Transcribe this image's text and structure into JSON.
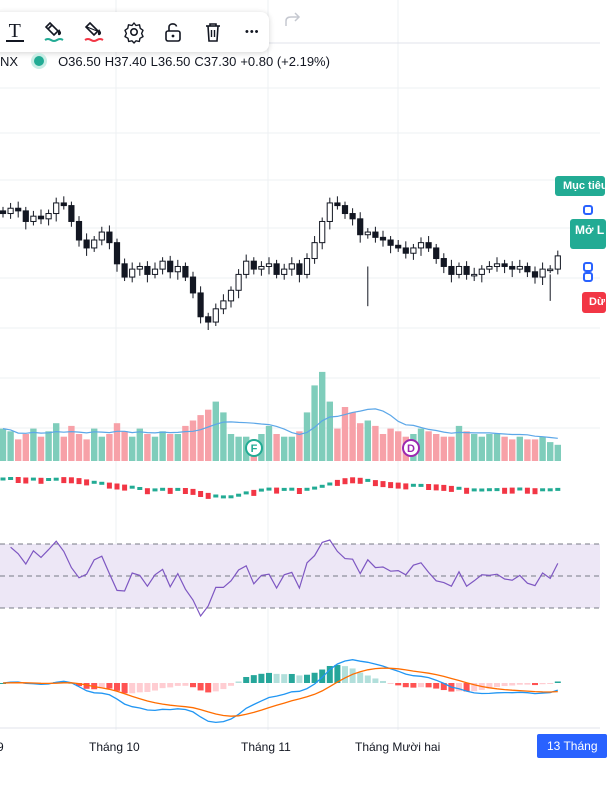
{
  "toolbar": {
    "items": [
      {
        "name": "text-tool",
        "icon": "text-icon"
      },
      {
        "name": "line-color",
        "icon": "brush-icon"
      },
      {
        "name": "fill-color",
        "icon": "paint-bucket-icon"
      },
      {
        "name": "settings",
        "icon": "gear-icon"
      },
      {
        "name": "lock",
        "icon": "lock-icon"
      },
      {
        "name": "delete",
        "icon": "trash-icon"
      },
      {
        "name": "more",
        "icon": "more-icon"
      }
    ],
    "redo_icon": "redo-icon",
    "text_glyph": "T",
    "more_glyph": "•••"
  },
  "legend": {
    "symbol": "NX",
    "open": "O36.50",
    "high": "H37.40",
    "low": "L36.50",
    "close": "C37.30",
    "change": "+0.80 (+2.19%)"
  },
  "right_tags": {
    "target": "Mục tiêu",
    "open": "Mở L",
    "stop": "Dừ"
  },
  "markers": {
    "f": "F",
    "d": "D"
  },
  "x_axis": {
    "labels": [
      "9",
      "Tháng 10",
      "Tháng 11",
      "Tháng Mười hai"
    ],
    "current": "13 Tháng"
  },
  "colors": {
    "up": "#22ab94",
    "down": "#f23645",
    "body": "#131722",
    "volume_up": "#7fcdbb",
    "volume_down": "#f7a1a8",
    "ma_line": "#5ca7e8",
    "rsi_line": "#7e57c2",
    "rsi_band": "#ede7f6",
    "macd_line": "#2196f3",
    "signal_line": "#ff6d00",
    "grid": "#eef0f3"
  },
  "chart_data": {
    "type": "candlestick",
    "symbol": "NX",
    "last": {
      "open": 36.5,
      "high": 37.4,
      "low": 36.5,
      "close": 37.3,
      "change": 0.8,
      "change_pct": 2.19
    },
    "x_tick_labels": [
      "9",
      "Tháng 10",
      "Tháng 11",
      "Tháng Mười hai",
      "13 Tháng"
    ],
    "indicators": [
      "Volume + MA",
      "Moving-average ribbon",
      "RSI",
      "MACD"
    ],
    "events": [
      "F",
      "D"
    ],
    "close_series": [
      38.9,
      39.1,
      39.0,
      38.6,
      38.8,
      38.7,
      38.9,
      39.3,
      39.2,
      38.6,
      37.9,
      37.6,
      37.9,
      38.2,
      37.8,
      37.0,
      36.5,
      36.8,
      36.9,
      36.6,
      36.8,
      37.1,
      36.7,
      36.9,
      36.5,
      35.9,
      35.0,
      34.8,
      35.3,
      35.6,
      36.0,
      36.6,
      37.1,
      36.8,
      36.9,
      37.0,
      36.6,
      36.8,
      37.0,
      36.6,
      37.2,
      37.8,
      38.6,
      39.3,
      39.2,
      38.9,
      38.7,
      38.1,
      38.2,
      38.0,
      37.9,
      37.7,
      37.6,
      37.4,
      37.6,
      37.8,
      37.6,
      37.2,
      36.9,
      36.6,
      36.9,
      36.6,
      36.6,
      36.8,
      36.9,
      37.0,
      36.9,
      36.8,
      36.9,
      36.7,
      36.5,
      36.8,
      36.8,
      37.3
    ],
    "volume_series": [
      12,
      11,
      8,
      10,
      12,
      9,
      11,
      14,
      9,
      13,
      10,
      8,
      12,
      9,
      10,
      14,
      11,
      9,
      12,
      10,
      9,
      11,
      10,
      10,
      13,
      15,
      17,
      19,
      22,
      18,
      10,
      9,
      9,
      8,
      10,
      13,
      10,
      9,
      9,
      11,
      18,
      28,
      33,
      22,
      12,
      20,
      18,
      14,
      15,
      13,
      10,
      12,
      11,
      9,
      10,
      12,
      11,
      10,
      9,
      9,
      13,
      11,
      10,
      9,
      10,
      10,
      9,
      8,
      9,
      8,
      8,
      9,
      7,
      6
    ]
  }
}
